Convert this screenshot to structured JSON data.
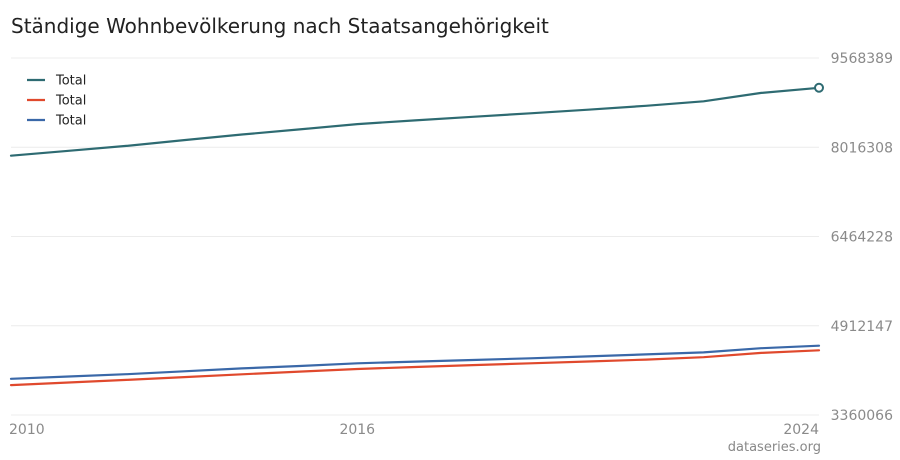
{
  "title": "Ständige Wohnbevölkerung nach Staatsangehörigkeit",
  "credit": "dataseries.org",
  "chart_data": {
    "type": "line",
    "title": "Ständige Wohnbevölkerung nach Staatsangehörigkeit",
    "xlabel": "",
    "ylabel": "",
    "x_ticks": [
      2010,
      2016,
      2024
    ],
    "y_ticks": [
      3360066,
      4912147,
      6464228,
      8016308,
      9568389
    ],
    "xlim": [
      2010,
      2024
    ],
    "ylim": [
      3360066,
      9568389
    ],
    "grid": true,
    "legend_position": "top-left",
    "series": [
      {
        "name": "Total",
        "color": "#2e6b72",
        "x": [
          2010,
          2011,
          2012,
          2013,
          2014,
          2015,
          2016,
          2017,
          2018,
          2019,
          2020,
          2021,
          2022,
          2023,
          2024
        ],
        "values": [
          7870000,
          7955000,
          8039000,
          8140000,
          8238000,
          8327000,
          8419000,
          8484000,
          8545000,
          8606000,
          8670000,
          8738000,
          8815000,
          8962000,
          9051000
        ]
      },
      {
        "name": "Total",
        "color": "#e0492d",
        "x": [
          2010,
          2011,
          2012,
          2013,
          2014,
          2015,
          2016,
          2017,
          2018,
          2019,
          2020,
          2021,
          2022,
          2023,
          2024
        ],
        "values": [
          3880000,
          3925000,
          3970000,
          4020000,
          4068000,
          4115000,
          4160000,
          4195000,
          4228000,
          4260000,
          4290000,
          4324000,
          4366000,
          4440000,
          4485000
        ]
      },
      {
        "name": "Total",
        "color": "#3a68a8",
        "x": [
          2010,
          2011,
          2012,
          2013,
          2014,
          2015,
          2016,
          2017,
          2018,
          2019,
          2020,
          2021,
          2022,
          2023,
          2024
        ],
        "values": [
          3990000,
          4030000,
          4069000,
          4120000,
          4170000,
          4212000,
          4259000,
          4289000,
          4317000,
          4346000,
          4380000,
          4414000,
          4449000,
          4522000,
          4566000
        ]
      }
    ]
  }
}
